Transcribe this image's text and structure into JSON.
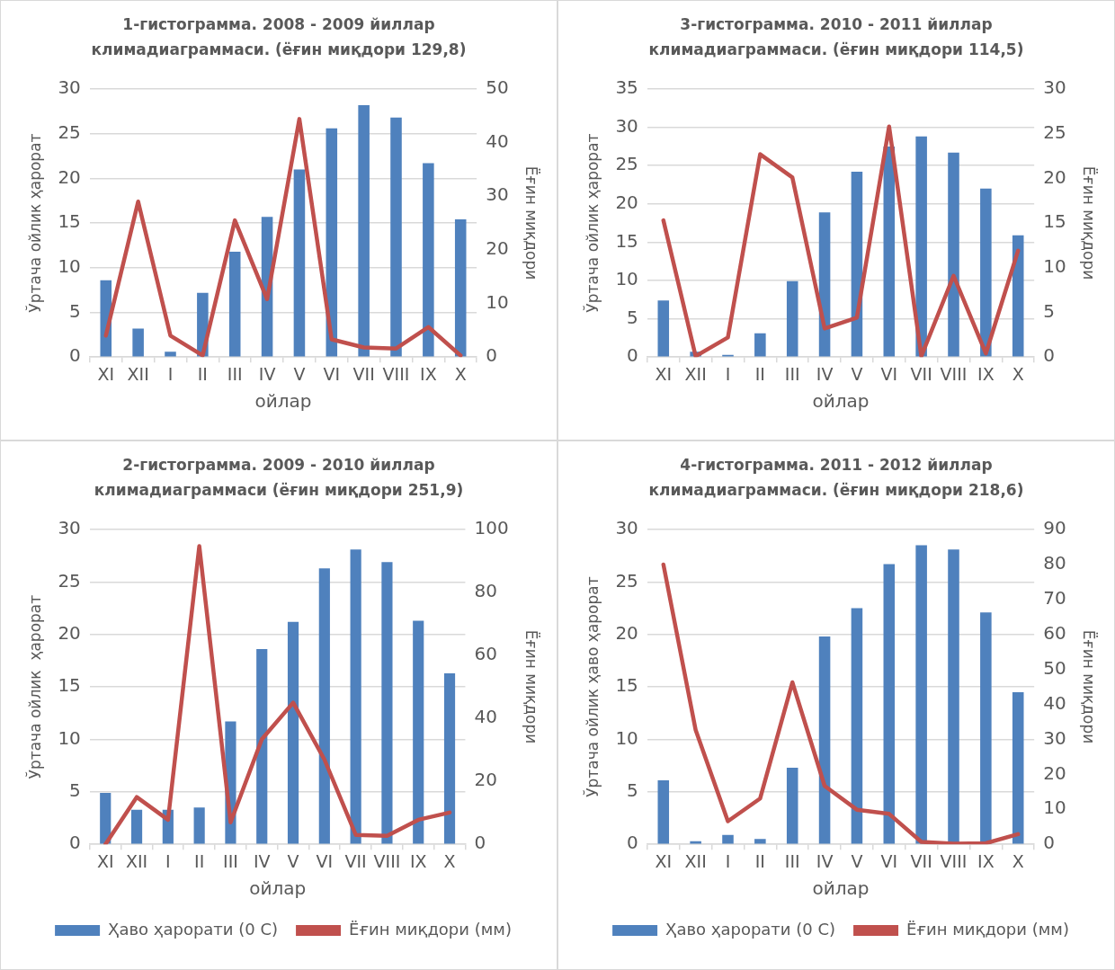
{
  "chart_data": [
    {
      "type": "bar",
      "title": "1-гистограмма. 2008 - 2009 йиллар климадиаграммаси. (ёғин миқдори 129,8)",
      "xlabel": "ойлар",
      "ylabel": "Ўртача ойлик ҳарорат",
      "y2label": "Ёғин миқдори",
      "categories": [
        "XI",
        "XII",
        "I",
        "II",
        "III",
        "IV",
        "V",
        "VI",
        "VII",
        "VIII",
        "IX",
        "X"
      ],
      "series": [
        {
          "color": "#4f81bd",
          "values": [
            8.6,
            3.2,
            0.6,
            7.2,
            11.8,
            15.7,
            21.0,
            25.6,
            28.2,
            26.8,
            21.7,
            15.4
          ]
        },
        {
          "type": "line",
          "axis": "y2",
          "color": "#c0504d",
          "values": [
            4,
            29,
            4,
            0.3,
            25.5,
            10.8,
            44.4,
            3.3,
            1.8,
            1.6,
            5.6,
            0.3
          ]
        }
      ],
      "ylim": [
        0,
        30
      ],
      "yticks": [
        0,
        5,
        10,
        15,
        20,
        25,
        30
      ],
      "y2lim": [
        0,
        50
      ],
      "y2ticks": [
        0,
        10,
        20,
        30,
        40,
        50
      ],
      "grid": "y",
      "legend": false,
      "marker": "none"
    },
    {
      "type": "bar",
      "title": "3-гистограмма. 2010 - 2011 йиллар климадиаграммаси. (ёғин миқдори 114,5)",
      "xlabel": "ойлар",
      "ylabel": "Ўртача ойлик ҳарорат",
      "y2label": "Ёғин миқдори",
      "categories": [
        "XI",
        "XII",
        "I",
        "II",
        "III",
        "IV",
        "V",
        "VI",
        "VII",
        "VIII",
        "IX",
        "X"
      ],
      "series": [
        {
          "color": "#4f81bd",
          "values": [
            7.4,
            0.7,
            0.3,
            3.1,
            9.9,
            18.9,
            24.2,
            27.5,
            28.8,
            26.7,
            22.0,
            15.9
          ]
        },
        {
          "type": "line",
          "axis": "y2",
          "color": "#c0504d",
          "values": [
            15.3,
            0.1,
            2.2,
            22.7,
            20.1,
            3.2,
            4.4,
            25.8,
            0.1,
            9.1,
            0.4,
            11.9
          ]
        }
      ],
      "ylim": [
        0,
        35
      ],
      "yticks": [
        0,
        5,
        10,
        15,
        20,
        25,
        30,
        35
      ],
      "y2lim": [
        0,
        30
      ],
      "y2ticks": [
        0,
        5,
        10,
        15,
        20,
        25,
        30
      ],
      "grid": "y",
      "legend": false,
      "marker": "none"
    },
    {
      "type": "bar",
      "title": "2-гистограмма. 2009 - 2010 йиллар климадиаграммаси (ёғин миқдори 251,9)",
      "xlabel": "ойлар",
      "ylabel": "Ўртача ойлик  ҳарорат",
      "y2label": "Ёғин миқдори",
      "categories": [
        "XI",
        "XII",
        "I",
        "II",
        "III",
        "IV",
        "V",
        "VI",
        "VII",
        "VIII",
        "IX",
        "X"
      ],
      "series": [
        {
          "name": "Ҳаво ҳарорати (0 С)",
          "color": "#4f81bd",
          "values": [
            4.9,
            3.3,
            3.3,
            3.5,
            11.7,
            18.6,
            21.2,
            26.3,
            28.1,
            26.9,
            21.3,
            16.3
          ]
        },
        {
          "type": "line",
          "axis": "y2",
          "name": "Ёғин миқдори (мм)",
          "color": "#c0504d",
          "values": [
            0,
            15,
            7.8,
            94.7,
            7,
            33.4,
            45,
            26.9,
            3,
            2.7,
            7.8,
            10.1
          ]
        }
      ],
      "ylim": [
        0,
        30
      ],
      "yticks": [
        0,
        5,
        10,
        15,
        20,
        25,
        30
      ],
      "y2lim": [
        0,
        100
      ],
      "y2ticks": [
        0,
        20,
        40,
        60,
        80,
        100
      ],
      "grid": "y",
      "legend": "bottom",
      "marker": "none"
    },
    {
      "type": "bar",
      "title": "4-гистограмма. 2011 - 2012 йиллар климадиаграммаси. (ёғин миқдори 218,6)",
      "xlabel": "ойлар",
      "ylabel": "Ўртача ойлик ҳаво ҳарорат",
      "y2label": "Ёғин миқдори",
      "categories": [
        "XI",
        "XII",
        "I",
        "II",
        "III",
        "IV",
        "V",
        "VI",
        "VII",
        "VIII",
        "IX",
        "X"
      ],
      "series": [
        {
          "name": "Ҳаво ҳарорати (0 С)",
          "color": "#4f81bd",
          "values": [
            6.1,
            0.3,
            0.9,
            0.5,
            7.3,
            19.8,
            22.5,
            26.7,
            28.5,
            28.1,
            22.1,
            14.5
          ]
        },
        {
          "type": "line",
          "axis": "y2",
          "name": "Ёғин миқдори (мм)",
          "color": "#c0504d",
          "values": [
            80,
            32.7,
            6.6,
            13.1,
            46.3,
            16.7,
            9.9,
            8.7,
            0.7,
            0.2,
            0.3,
            2.9
          ]
        }
      ],
      "ylim": [
        0,
        30
      ],
      "yticks": [
        0,
        5,
        10,
        15,
        20,
        25,
        30
      ],
      "y2lim": [
        0,
        90
      ],
      "y2ticks": [
        0,
        10,
        20,
        30,
        40,
        50,
        60,
        70,
        80,
        90
      ],
      "grid": "y",
      "legend": "bottom",
      "marker": "none"
    }
  ]
}
